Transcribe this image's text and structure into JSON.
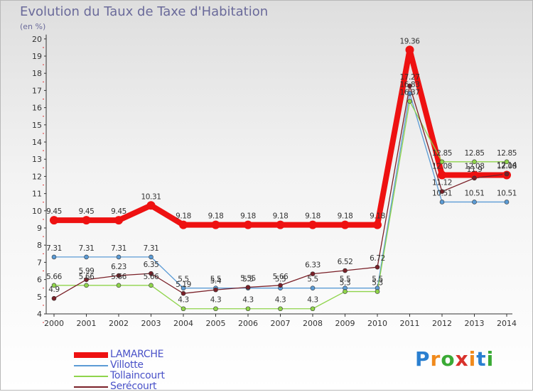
{
  "title": "Evolution du Taux de Taxe d'Habitation",
  "subtitle": "(en %)",
  "logo": {
    "text": "Proxiti",
    "colors": [
      "#2a7fd0",
      "#f08a1c",
      "#3aaa35",
      "#d8312b",
      "#f08a1c",
      "#2a7fd0",
      "#3aaa35"
    ]
  },
  "chart_data": {
    "type": "line",
    "x": [
      "2000",
      "2001",
      "2002",
      "2003",
      "2004",
      "2005",
      "2006",
      "2007",
      "2008",
      "2009",
      "2010",
      "2011",
      "2012",
      "2013",
      "2014"
    ],
    "ylim": [
      4,
      20
    ],
    "yticks": [
      "4",
      "5",
      "6",
      "7",
      "8",
      "9",
      "10",
      "11",
      "12",
      "13",
      "14",
      "15",
      "16",
      "17",
      "18",
      "19",
      "20"
    ],
    "grid": false,
    "legend_position": "bottom-left",
    "series": [
      {
        "name": "LAMARCHE",
        "color": "#ee1111",
        "width": 8,
        "dot": 6,
        "values": [
          9.45,
          9.45,
          9.45,
          10.31,
          9.18,
          9.18,
          9.18,
          9.18,
          9.18,
          9.18,
          9.18,
          19.36,
          12.08,
          12.08,
          12.08
        ],
        "labels": [
          "9.45",
          "9.45",
          "9.45",
          "10.31",
          "9.18",
          "9.18",
          "9.18",
          "9.18",
          "9.18",
          "9.18",
          "9.18",
          "19.36",
          "12.08",
          "12.08",
          "12.08"
        ]
      },
      {
        "name": "Villotte",
        "color": "#5b9bd5",
        "width": 1.3,
        "dot": 3,
        "values": [
          7.31,
          7.31,
          7.31,
          7.31,
          5.5,
          5.5,
          5.5,
          5.5,
          5.5,
          5.5,
          5.5,
          16.83,
          10.51,
          10.51,
          10.51
        ],
        "labels": [
          "7.31",
          "7.31",
          "7.31",
          "7.31",
          "5.5",
          "5.5",
          "5.5",
          "5.5",
          "5.5",
          "5.5",
          "5.5",
          "16.83",
          "10.51",
          "10.51",
          "10.51"
        ]
      },
      {
        "name": "Tollaincourt",
        "color": "#8fd44b",
        "width": 1.3,
        "dot": 3,
        "values": [
          5.66,
          5.66,
          5.66,
          5.66,
          4.3,
          4.3,
          4.3,
          4.3,
          4.3,
          5.3,
          5.3,
          16.37,
          12.85,
          12.85,
          12.85
        ],
        "labels": [
          "5.66",
          "5.66",
          "5.66",
          "5.66",
          "4.3",
          "4.3",
          "4.3",
          "4.3",
          "4.3",
          "5.3",
          "5.3",
          "16.37",
          "12.85",
          "12.85",
          "12.85"
        ]
      },
      {
        "name": "Serécourt",
        "color": "#7a2028",
        "width": 1.3,
        "dot": 3,
        "values": [
          4.9,
          5.99,
          6.23,
          6.35,
          5.19,
          5.4,
          5.55,
          5.66,
          6.33,
          6.52,
          6.72,
          17.27,
          11.12,
          11.9,
          12.14
        ],
        "labels": [
          "4.9",
          "5.99",
          "6.23",
          "6.35",
          "5.19",
          "5.4",
          "5.55",
          "5.66",
          "6.33",
          "6.52",
          "6.72",
          "17.27",
          "11.12",
          "11.9",
          "12.14"
        ]
      }
    ]
  }
}
